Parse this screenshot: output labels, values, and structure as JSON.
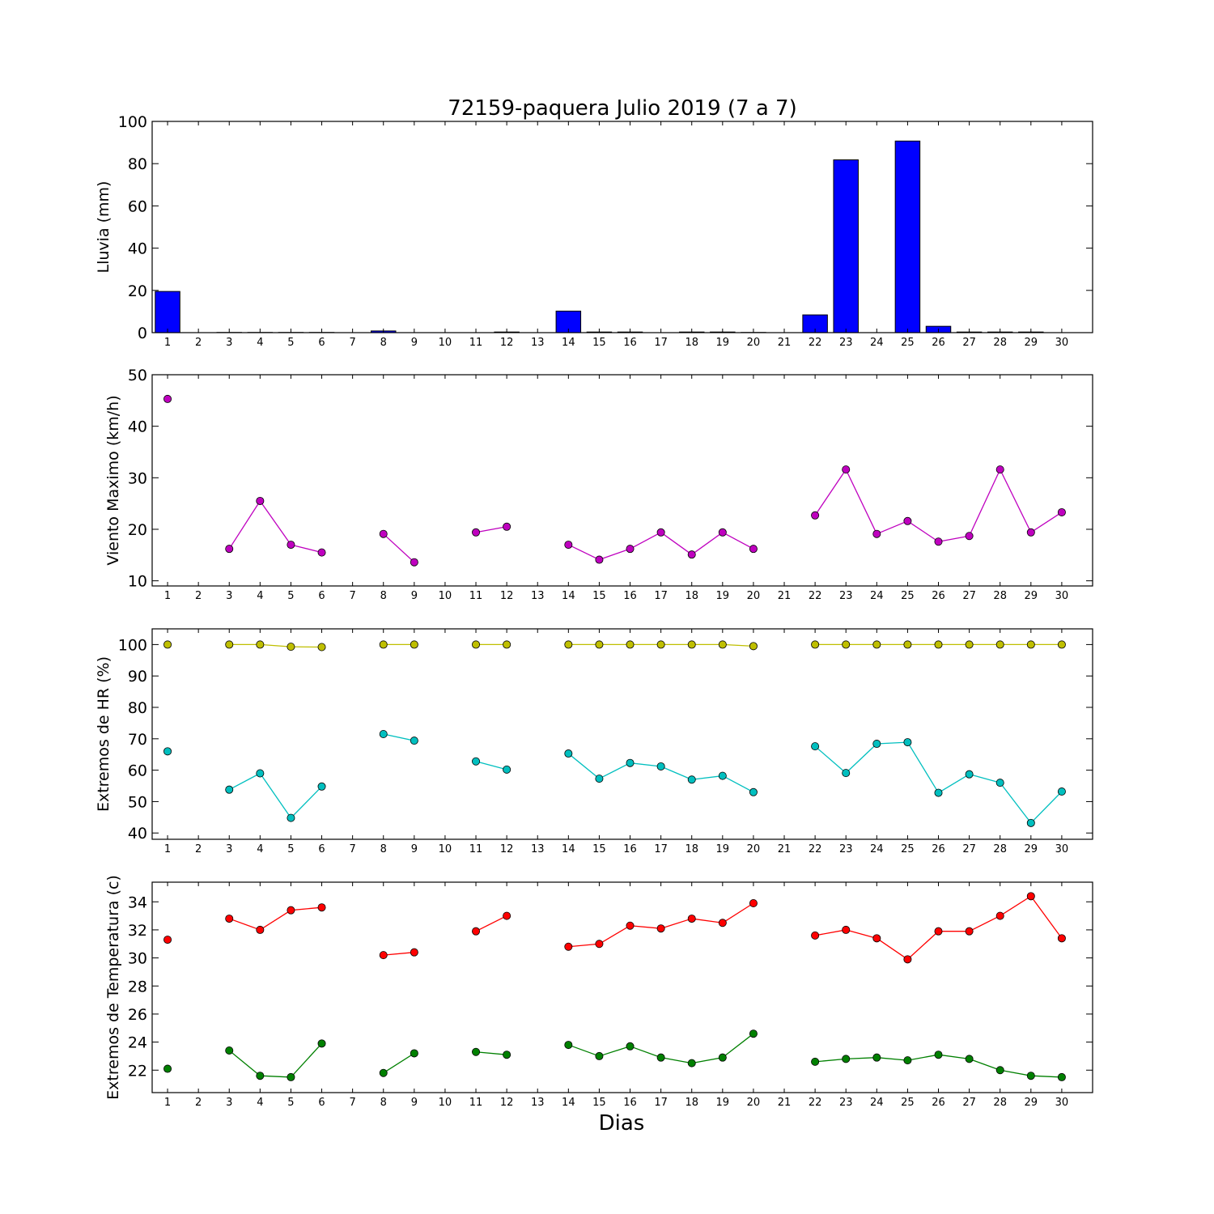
{
  "title": "72159-paquera Julio 2019  (7 a 7)",
  "xlabel": "Dias",
  "chart_data": [
    {
      "type": "bar",
      "ylabel": "Lluvia (mm)",
      "ylim": [
        0,
        100
      ],
      "yticks": [
        0,
        20,
        40,
        60,
        80,
        100
      ],
      "categories": [
        1,
        2,
        3,
        4,
        5,
        6,
        7,
        8,
        9,
        10,
        11,
        12,
        13,
        14,
        15,
        16,
        17,
        18,
        19,
        20,
        21,
        22,
        23,
        24,
        25,
        26,
        27,
        28,
        29,
        30
      ],
      "values": [
        19.5,
        0,
        0.1,
        0.1,
        0.1,
        0.1,
        0,
        0.8,
        0,
        0,
        0,
        0.3,
        0,
        10.2,
        0.3,
        0.3,
        0,
        0.3,
        0.3,
        0.1,
        0,
        8.4,
        81.8,
        0,
        90.7,
        3,
        0.3,
        0.3,
        0.3,
        0
      ],
      "color": "#0000ff",
      "grid": false
    },
    {
      "type": "line",
      "ylabel": "Viento Maximo (km/h)",
      "ylim": [
        9,
        50
      ],
      "yticks": [
        10,
        20,
        30,
        40,
        50
      ],
      "x": [
        1,
        2,
        3,
        4,
        5,
        6,
        7,
        8,
        9,
        10,
        11,
        12,
        13,
        14,
        15,
        16,
        17,
        18,
        19,
        20,
        21,
        22,
        23,
        24,
        25,
        26,
        27,
        28,
        29,
        30
      ],
      "series": [
        {
          "color": "#bf00bf",
          "values": [
            45.3,
            null,
            16.2,
            25.5,
            17,
            15.5,
            null,
            19.1,
            13.6,
            null,
            19.4,
            20.5,
            null,
            17,
            14.1,
            16.2,
            19.4,
            15.1,
            19.4,
            16.2,
            null,
            22.7,
            31.6,
            19.1,
            21.6,
            17.6,
            18.7,
            31.6,
            19.4,
            23.3
          ]
        }
      ],
      "grid": false
    },
    {
      "type": "line",
      "ylabel": "Extremos de HR (%)",
      "ylim": [
        38,
        105
      ],
      "yticks": [
        40,
        50,
        60,
        70,
        80,
        90,
        100
      ],
      "x": [
        1,
        2,
        3,
        4,
        5,
        6,
        7,
        8,
        9,
        10,
        11,
        12,
        13,
        14,
        15,
        16,
        17,
        18,
        19,
        20,
        21,
        22,
        23,
        24,
        25,
        26,
        27,
        28,
        29,
        30
      ],
      "series": [
        {
          "color": "#bfbf00",
          "values": [
            100,
            null,
            100,
            100,
            99.3,
            99.2,
            null,
            100,
            100,
            null,
            100,
            100,
            null,
            100,
            100,
            100,
            100,
            100,
            100,
            99.5,
            null,
            100,
            100,
            100,
            100,
            100,
            100,
            100,
            100,
            100
          ]
        },
        {
          "color": "#00bfbf",
          "values": [
            66,
            null,
            53.8,
            59,
            44.8,
            54.8,
            null,
            71.5,
            69.4,
            null,
            62.8,
            60.2,
            null,
            65.3,
            57.3,
            62.3,
            61.2,
            57,
            58.2,
            53,
            null,
            67.6,
            59.1,
            68.4,
            68.9,
            52.8,
            58.7,
            56,
            43.2,
            53.2
          ]
        }
      ],
      "grid": false
    },
    {
      "type": "line",
      "ylabel": "Extremos de Temperatura (c)",
      "ylim": [
        20.4,
        35.4
      ],
      "yticks": [
        22,
        24,
        26,
        28,
        30,
        32,
        34
      ],
      "x": [
        1,
        2,
        3,
        4,
        5,
        6,
        7,
        8,
        9,
        10,
        11,
        12,
        13,
        14,
        15,
        16,
        17,
        18,
        19,
        20,
        21,
        22,
        23,
        24,
        25,
        26,
        27,
        28,
        29,
        30
      ],
      "series": [
        {
          "color": "#ff0000",
          "values": [
            31.3,
            null,
            32.8,
            32,
            33.4,
            33.6,
            null,
            30.2,
            30.4,
            null,
            31.9,
            33,
            null,
            30.8,
            31,
            32.3,
            32.1,
            32.8,
            32.5,
            33.9,
            null,
            31.6,
            32,
            31.4,
            29.9,
            31.9,
            31.9,
            33,
            34.4,
            31.4
          ]
        },
        {
          "color": "#008000",
          "values": [
            22.1,
            null,
            23.4,
            21.6,
            21.5,
            23.9,
            null,
            21.8,
            23.2,
            null,
            23.3,
            23.1,
            null,
            23.8,
            23,
            23.7,
            22.9,
            22.5,
            22.9,
            24.6,
            null,
            22.6,
            22.8,
            22.9,
            22.7,
            23.1,
            22.8,
            22,
            21.6,
            21.5
          ]
        }
      ],
      "grid": false
    }
  ]
}
